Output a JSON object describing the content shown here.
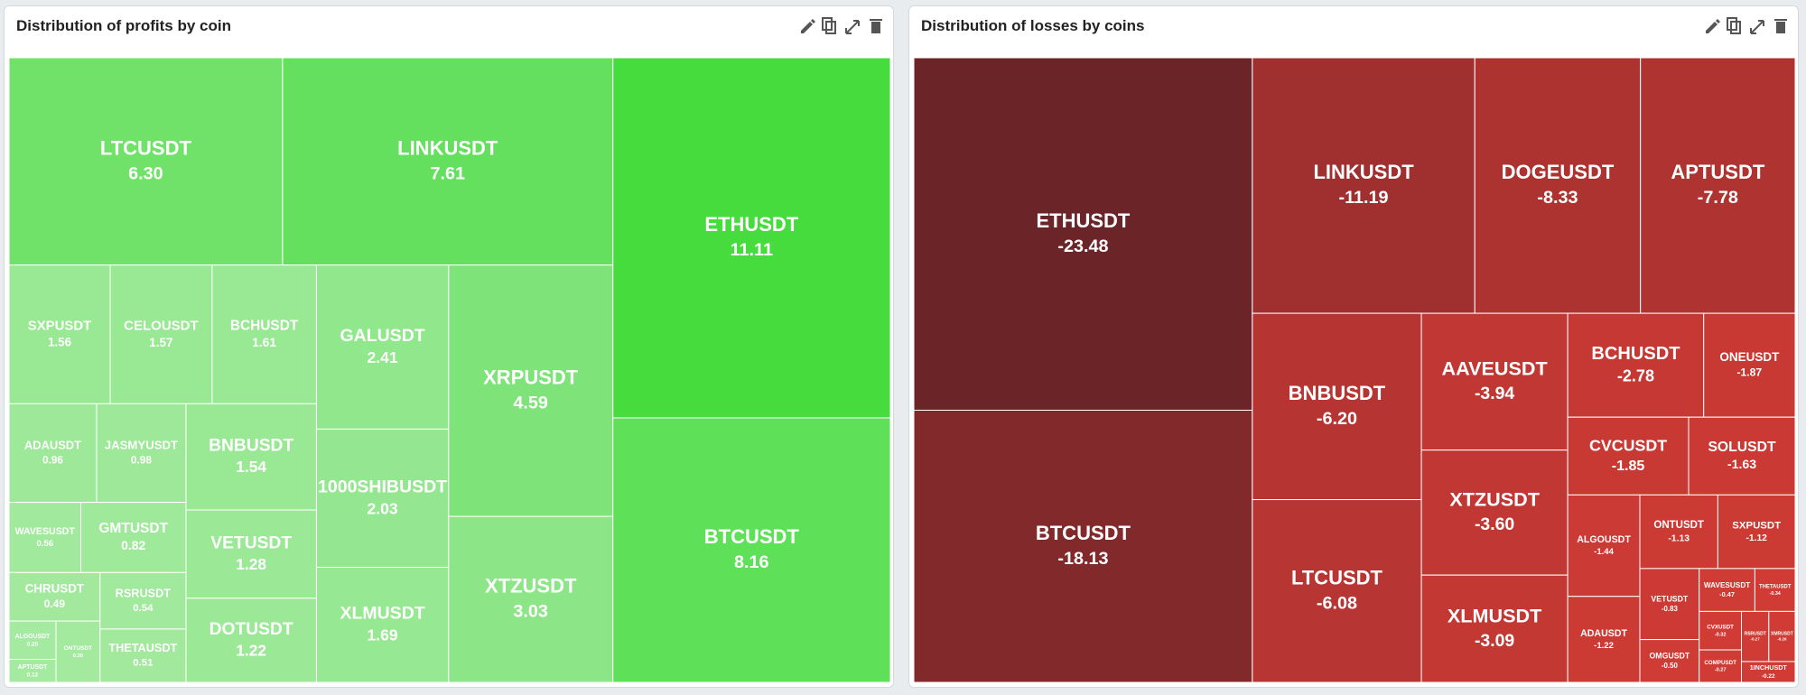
{
  "chart_data": [
    {
      "type": "treemap",
      "title": "Distribution of profits by coin",
      "categories": [
        "ETHUSDT",
        "BTCUSDT",
        "LINKUSDT",
        "LTCUSDT",
        "XRPUSDT",
        "XTZUSDT",
        "GALUSDT",
        "1000SHIBUSDT",
        "XLMUSDT",
        "BCHUSDT",
        "CELOUSDT",
        "SXPUSDT",
        "BNBUSDT",
        "VETUSDT",
        "DOTUSDT",
        "JASMYUSDT",
        "ADAUSDT",
        "GMTUSDT",
        "WAVESUSDT",
        "RSRUSDT",
        "THETAUSDT",
        "CHRUSDT",
        "ONTUSDT",
        "ALGOUSDT",
        "APTUSDT"
      ],
      "values": [
        11.11,
        8.16,
        7.61,
        6.3,
        4.59,
        3.03,
        2.41,
        2.03,
        1.69,
        1.61,
        1.57,
        1.56,
        1.54,
        1.28,
        1.22,
        0.98,
        0.96,
        0.82,
        0.56,
        0.54,
        0.51,
        0.49,
        0.3,
        0.2,
        0.12
      ],
      "value_labels": [
        "11.11",
        "8.16",
        "7.61",
        "6.30",
        "4.59",
        "3.03",
        "2.41",
        "2.03",
        "1.69",
        "1.61",
        "1.57",
        "1.56",
        "1.54",
        "1.28",
        "1.22",
        "0.98",
        "0.96",
        "0.82",
        "0.56",
        "0.54",
        "0.51",
        "0.49",
        "0.30",
        "0.20",
        "0.12"
      ],
      "colors": {
        "low": "#a6eaa2",
        "high": "#46dc3e"
      }
    },
    {
      "type": "treemap",
      "title": "Distribution of losses by coins",
      "categories": [
        "ETHUSDT",
        "BTCUSDT",
        "LINKUSDT",
        "DOGEUSDT",
        "APTUSDT",
        "BNBUSDT",
        "LTCUSDT",
        "AAVEUSDT",
        "XTZUSDT",
        "XLMUSDT",
        "BCHUSDT",
        "ONEUSDT",
        "CVCUSDT",
        "SOLUSDT",
        "ALGOUSDT",
        "ADAUSDT",
        "ONTUSDT",
        "SXPUSDT",
        "VETUSDT",
        "OMGUSDT",
        "WAVESUSDT",
        "THETAUSDT",
        "CVXUSDT",
        "COMPUSDT",
        "RSRUSDT",
        "XMRUSDT",
        "1INCHUSDT"
      ],
      "values": [
        -23.48,
        -18.13,
        -11.19,
        -8.33,
        -7.78,
        -6.2,
        -6.08,
        -3.94,
        -3.6,
        -3.09,
        -2.78,
        -1.87,
        -1.85,
        -1.63,
        -1.44,
        -1.22,
        -1.13,
        -1.12,
        -0.83,
        -0.5,
        -0.47,
        -0.34,
        -0.32,
        -0.27,
        -0.27,
        -0.26,
        -0.22
      ],
      "value_labels": [
        "-23.48",
        "-18.13",
        "-11.19",
        "-8.33",
        "-7.78",
        "-6.20",
        "-6.08",
        "-3.94",
        "-3.60",
        "-3.09",
        "-2.78",
        "-1.87",
        "-1.85",
        "-1.63",
        "-1.44",
        "-1.22",
        "-1.13",
        "-1.12",
        "-0.83",
        "-0.50",
        "-0.47",
        "-0.34",
        "-0.32",
        "-0.27",
        "-0.27",
        "-0.26",
        "-0.22"
      ],
      "colors": {
        "low": "#d13b35",
        "high": "#6b2428"
      }
    }
  ]
}
